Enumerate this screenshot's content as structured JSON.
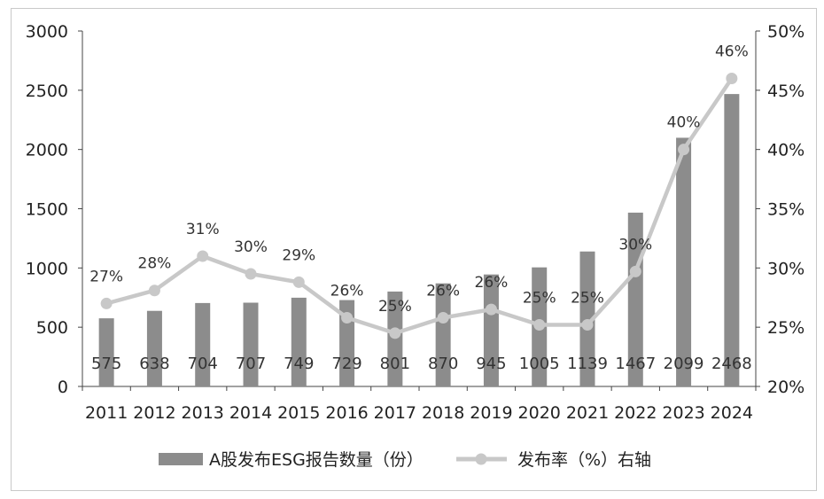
{
  "chart_data": {
    "type": "bar+line",
    "categories": [
      "2011",
      "2012",
      "2013",
      "2014",
      "2015",
      "2016",
      "2017",
      "2018",
      "2019",
      "2020",
      "2021",
      "2022",
      "2023",
      "2024"
    ],
    "series": [
      {
        "name": "A股发布ESG报告数量（份）",
        "type": "bar",
        "axis": "left",
        "color": "#8c8c8c",
        "values": [
          575,
          638,
          704,
          707,
          749,
          729,
          801,
          870,
          945,
          1005,
          1139,
          1467,
          2099,
          2468
        ],
        "labels": [
          "575",
          "638",
          "704",
          "707",
          "749",
          "729",
          "801",
          "870",
          "945",
          "1005",
          "1139",
          "1467",
          "2099",
          "2468"
        ]
      },
      {
        "name": "发布率（%）右轴",
        "type": "line",
        "axis": "right",
        "color": "#c8c8c8",
        "values": [
          27,
          28.1,
          31,
          29.5,
          28.8,
          25.8,
          24.5,
          25.8,
          26.5,
          25.2,
          25.2,
          29.7,
          40,
          46
        ],
        "labels": [
          "27%",
          "28%",
          "31%",
          "30%",
          "29%",
          "26%",
          "25%",
          "26%",
          "26%",
          "25%",
          "25%",
          "30%",
          "40%",
          "46%"
        ]
      }
    ],
    "y_left": {
      "lim": [
        0,
        3000
      ],
      "ticks": [
        "0",
        "500",
        "1000",
        "1500",
        "2000",
        "2500",
        "3000"
      ]
    },
    "y_right": {
      "lim": [
        20,
        50
      ],
      "ticks": [
        "20%",
        "25%",
        "30%",
        "35%",
        "40%",
        "45%",
        "50%"
      ]
    },
    "grid": false,
    "legend_position": "bottom"
  }
}
